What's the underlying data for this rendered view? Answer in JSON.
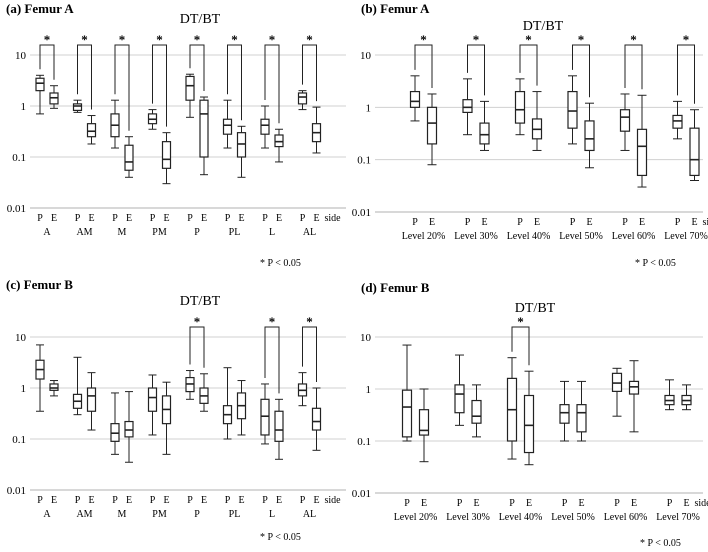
{
  "chart_data": [
    {
      "type": "boxplot",
      "panel": "(a)",
      "panel_title": "Femur A",
      "title": "DT/BT",
      "yscale": "log",
      "yticks": [
        "10",
        "1",
        "0.1",
        "0.01"
      ],
      "ylim": [
        0.01,
        10
      ],
      "categories": [
        "A",
        "AM",
        "M",
        "PM",
        "P",
        "PL",
        "L",
        "AL"
      ],
      "sides": [
        "P",
        "E"
      ],
      "side_label": "side",
      "note": "* P < 0.05",
      "significant": [
        true,
        true,
        true,
        true,
        true,
        true,
        true,
        true
      ],
      "series": [
        {
          "name": "P",
          "boxes": [
            {
              "min": 0.7,
              "q1": 2.0,
              "median": 2.8,
              "q3": 3.5,
              "max": 4.0
            },
            {
              "min": 0.75,
              "q1": 0.82,
              "median": 1.0,
              "q3": 1.1,
              "max": 1.3
            },
            {
              "min": 0.15,
              "q1": 0.25,
              "median": 0.42,
              "q3": 0.7,
              "max": 1.3
            },
            {
              "min": 0.35,
              "q1": 0.45,
              "median": 0.55,
              "q3": 0.7,
              "max": 0.85
            },
            {
              "min": 0.6,
              "q1": 1.3,
              "median": 2.5,
              "q3": 3.8,
              "max": 4.2
            },
            {
              "min": 0.15,
              "q1": 0.28,
              "median": 0.42,
              "q3": 0.55,
              "max": 1.3
            },
            {
              "min": 0.15,
              "q1": 0.28,
              "median": 0.42,
              "q3": 0.55,
              "max": 1.0
            },
            {
              "min": 0.85,
              "q1": 1.1,
              "median": 1.5,
              "q3": 1.8,
              "max": 2.0
            }
          ]
        },
        {
          "name": "E",
          "boxes": [
            {
              "min": 0.9,
              "q1": 1.1,
              "median": 1.45,
              "q3": 1.8,
              "max": 2.5
            },
            {
              "min": 0.18,
              "q1": 0.25,
              "median": 0.32,
              "q3": 0.45,
              "max": 0.65
            },
            {
              "min": 0.04,
              "q1": 0.055,
              "median": 0.08,
              "q3": 0.17,
              "max": 0.25
            },
            {
              "min": 0.03,
              "q1": 0.06,
              "median": 0.09,
              "q3": 0.2,
              "max": 0.3
            },
            {
              "min": 0.045,
              "q1": 0.1,
              "median": 0.7,
              "q3": 1.3,
              "max": 1.5
            },
            {
              "min": 0.04,
              "q1": 0.1,
              "median": 0.18,
              "q3": 0.3,
              "max": 0.4
            },
            {
              "min": 0.08,
              "q1": 0.16,
              "median": 0.2,
              "q3": 0.27,
              "max": 0.35
            },
            {
              "min": 0.12,
              "q1": 0.2,
              "median": 0.3,
              "q3": 0.45,
              "max": 0.95
            }
          ]
        }
      ]
    },
    {
      "type": "boxplot",
      "panel": "(b)",
      "panel_title": "Femur A",
      "title": "DT/BT",
      "yscale": "log",
      "yticks": [
        "10",
        "1",
        "0.1",
        "0.01"
      ],
      "ylim": [
        0.01,
        10
      ],
      "categories": [
        "Level 20%",
        "Level 30%",
        "Level 40%",
        "Level 50%",
        "Level 60%",
        "Level 70%"
      ],
      "sides": [
        "P",
        "E"
      ],
      "side_label": "side",
      "note": "* P < 0.05",
      "significant": [
        true,
        true,
        true,
        true,
        true,
        true
      ],
      "series": [
        {
          "name": "P",
          "boxes": [
            {
              "min": 0.55,
              "q1": 1.0,
              "median": 1.3,
              "q3": 2.0,
              "max": 4.0
            },
            {
              "min": 0.3,
              "q1": 0.8,
              "median": 1.0,
              "q3": 1.4,
              "max": 3.5
            },
            {
              "min": 0.3,
              "q1": 0.5,
              "median": 0.9,
              "q3": 2.0,
              "max": 3.5
            },
            {
              "min": 0.2,
              "q1": 0.4,
              "median": 0.85,
              "q3": 2.0,
              "max": 4.0
            },
            {
              "min": 0.15,
              "q1": 0.35,
              "median": 0.65,
              "q3": 0.9,
              "max": 1.8
            },
            {
              "min": 0.25,
              "q1": 0.4,
              "median": 0.55,
              "q3": 0.7,
              "max": 1.3
            }
          ]
        },
        {
          "name": "E",
          "boxes": [
            {
              "min": 0.08,
              "q1": 0.2,
              "median": 0.5,
              "q3": 1.0,
              "max": 1.8
            },
            {
              "min": 0.15,
              "q1": 0.2,
              "median": 0.3,
              "q3": 0.5,
              "max": 1.3
            },
            {
              "min": 0.15,
              "q1": 0.25,
              "median": 0.38,
              "q3": 0.6,
              "max": 2.0
            },
            {
              "min": 0.07,
              "q1": 0.15,
              "median": 0.25,
              "q3": 0.55,
              "max": 1.2
            },
            {
              "min": 0.03,
              "q1": 0.05,
              "median": 0.18,
              "q3": 0.38,
              "max": 1.7
            },
            {
              "min": 0.04,
              "q1": 0.05,
              "median": 0.1,
              "q3": 0.4,
              "max": 0.9
            }
          ]
        }
      ]
    },
    {
      "type": "boxplot",
      "panel": "(c)",
      "panel_title": "Femur B",
      "title": "DT/BT",
      "yscale": "log",
      "yticks": [
        "10",
        "1",
        "0.1",
        "0.01"
      ],
      "ylim": [
        0.01,
        10
      ],
      "categories": [
        "A",
        "AM",
        "M",
        "PM",
        "P",
        "PL",
        "L",
        "AL"
      ],
      "sides": [
        "P",
        "E"
      ],
      "side_label": "side",
      "note": "* P < 0.05",
      "significant": [
        false,
        false,
        false,
        false,
        true,
        false,
        true,
        true
      ],
      "series": [
        {
          "name": "P",
          "boxes": [
            {
              "min": 0.35,
              "q1": 1.5,
              "median": 2.3,
              "q3": 3.5,
              "max": 7.0
            },
            {
              "min": 0.3,
              "q1": 0.4,
              "median": 0.55,
              "q3": 0.75,
              "max": 4.0
            },
            {
              "min": 0.05,
              "q1": 0.09,
              "median": 0.13,
              "q3": 0.2,
              "max": 0.8
            },
            {
              "min": 0.12,
              "q1": 0.35,
              "median": 0.65,
              "q3": 1.0,
              "max": 1.8
            },
            {
              "min": 0.6,
              "q1": 0.85,
              "median": 1.2,
              "q3": 1.6,
              "max": 2.2
            },
            {
              "min": 0.1,
              "q1": 0.2,
              "median": 0.3,
              "q3": 0.45,
              "max": 2.5
            },
            {
              "min": 0.08,
              "q1": 0.12,
              "median": 0.28,
              "q3": 0.6,
              "max": 1.2
            },
            {
              "min": 0.45,
              "q1": 0.7,
              "median": 0.9,
              "q3": 1.2,
              "max": 2.0
            }
          ]
        },
        {
          "name": "E",
          "boxes": [
            {
              "min": 0.7,
              "q1": 0.9,
              "median": 1.0,
              "q3": 1.2,
              "max": 1.4
            },
            {
              "min": 0.15,
              "q1": 0.35,
              "median": 0.7,
              "q3": 1.0,
              "max": 2.0
            },
            {
              "min": 0.035,
              "q1": 0.11,
              "median": 0.15,
              "q3": 0.22,
              "max": 0.85
            },
            {
              "min": 0.05,
              "q1": 0.2,
              "median": 0.38,
              "q3": 0.7,
              "max": 1.3
            },
            {
              "min": 0.35,
              "q1": 0.5,
              "median": 0.7,
              "q3": 1.0,
              "max": 1.9
            },
            {
              "min": 0.12,
              "q1": 0.25,
              "median": 0.45,
              "q3": 0.8,
              "max": 1.4
            },
            {
              "min": 0.04,
              "q1": 0.09,
              "median": 0.15,
              "q3": 0.35,
              "max": 0.6
            },
            {
              "min": 0.06,
              "q1": 0.15,
              "median": 0.22,
              "q3": 0.4,
              "max": 1.0
            }
          ]
        }
      ]
    },
    {
      "type": "boxplot",
      "panel": "(d)",
      "panel_title": "Femur B",
      "title": "DT/BT",
      "yscale": "log",
      "yticks": [
        "10",
        "1",
        "0.1",
        "0.01"
      ],
      "ylim": [
        0.01,
        10
      ],
      "categories": [
        "Level 20%",
        "Level 30%",
        "Level 40%",
        "Level 50%",
        "Level 60%",
        "Level 70%"
      ],
      "sides": [
        "P",
        "E"
      ],
      "side_label": "side",
      "note": "* P < 0.05",
      "significant": [
        false,
        false,
        true,
        false,
        false,
        false
      ],
      "series": [
        {
          "name": "P",
          "boxes": [
            {
              "min": 0.1,
              "q1": 0.12,
              "median": 0.45,
              "q3": 0.95,
              "max": 7.0
            },
            {
              "min": 0.2,
              "q1": 0.35,
              "median": 0.8,
              "q3": 1.2,
              "max": 4.5
            },
            {
              "min": 0.045,
              "q1": 0.1,
              "median": 0.4,
              "q3": 1.6,
              "max": 4.0
            },
            {
              "min": 0.1,
              "q1": 0.22,
              "median": 0.35,
              "q3": 0.5,
              "max": 1.4
            },
            {
              "min": 0.3,
              "q1": 0.9,
              "median": 1.3,
              "q3": 2.0,
              "max": 2.5
            },
            {
              "min": 0.4,
              "q1": 0.5,
              "median": 0.6,
              "q3": 0.75,
              "max": 1.5
            }
          ]
        },
        {
          "name": "E",
          "boxes": [
            {
              "min": 0.04,
              "q1": 0.13,
              "median": 0.16,
              "q3": 0.4,
              "max": 1.0
            },
            {
              "min": 0.12,
              "q1": 0.22,
              "median": 0.3,
              "q3": 0.6,
              "max": 1.2
            },
            {
              "min": 0.035,
              "q1": 0.06,
              "median": 0.2,
              "q3": 0.75,
              "max": 2.2
            },
            {
              "min": 0.1,
              "q1": 0.15,
              "median": 0.35,
              "q3": 0.5,
              "max": 1.4
            },
            {
              "min": 0.15,
              "q1": 0.8,
              "median": 1.1,
              "q3": 1.4,
              "max": 3.5
            },
            {
              "min": 0.4,
              "q1": 0.5,
              "median": 0.6,
              "q3": 0.75,
              "max": 1.2
            }
          ]
        }
      ]
    }
  ]
}
